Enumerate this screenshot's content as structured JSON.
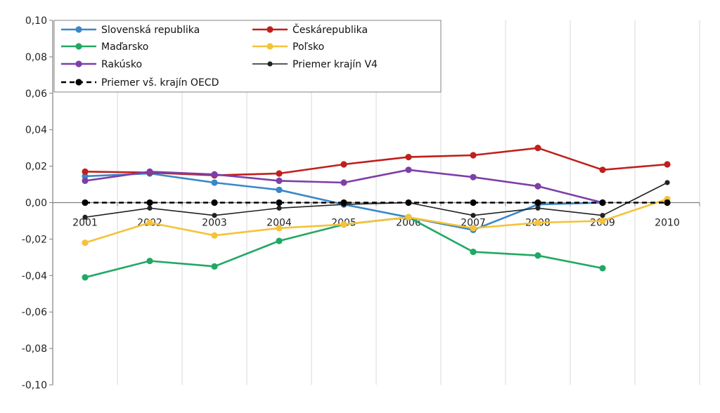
{
  "chart_data": {
    "type": "line",
    "title": "",
    "xlabel": "",
    "ylabel": "",
    "x": [
      "2001",
      "2002",
      "2003",
      "2004",
      "2005",
      "2006",
      "2007",
      "2008",
      "2009",
      "2010"
    ],
    "ylim": [
      -0.1,
      0.1
    ],
    "y_ticks": [
      "0,10",
      "0,08",
      "0,06",
      "0,04",
      "0,02",
      "0,00",
      "-0,02",
      "-0,04",
      "-0,06",
      "-0,08",
      "-0,10"
    ],
    "grid": "vertical",
    "legend_position": "top-left",
    "series": [
      {
        "name": "Slovenská republika",
        "color": "#3a87c8",
        "style": "solid",
        "values": [
          0.0145,
          0.016,
          0.011,
          0.007,
          -0.001,
          -0.008,
          -0.015,
          -0.001,
          0.0,
          null
        ]
      },
      {
        "name": "Českárepublika",
        "color": "#c0201c",
        "style": "solid",
        "values": [
          0.017,
          0.0165,
          0.015,
          0.016,
          0.021,
          0.025,
          0.026,
          0.03,
          0.018,
          0.021
        ]
      },
      {
        "name": "Maďarsko",
        "color": "#22a864",
        "style": "solid",
        "values": [
          -0.041,
          -0.032,
          -0.035,
          -0.021,
          -0.012,
          -0.008,
          -0.027,
          -0.029,
          -0.036,
          null
        ]
      },
      {
        "name": "Poľsko",
        "color": "#f5c23a",
        "style": "solid",
        "values": [
          -0.022,
          -0.011,
          -0.018,
          -0.014,
          -0.012,
          -0.008,
          -0.014,
          -0.011,
          -0.01,
          0.002
        ]
      },
      {
        "name": "Rakúsko",
        "color": "#7c3fa8",
        "style": "solid",
        "values": [
          0.012,
          0.017,
          0.0155,
          0.012,
          0.011,
          0.018,
          0.014,
          0.009,
          0.0,
          null
        ]
      },
      {
        "name": "Priemer krajín V4",
        "color": "#222222",
        "style": "solid-thin",
        "values": [
          -0.008,
          -0.003,
          -0.007,
          -0.003,
          -0.001,
          0.0,
          -0.007,
          -0.003,
          -0.007,
          0.011
        ]
      },
      {
        "name": "Priemer vš. krajín OECD",
        "color": "#000000",
        "style": "dashed",
        "values": [
          0.0,
          0.0,
          0.0,
          0.0,
          0.0,
          0.0,
          0.0,
          0.0,
          0.0,
          0.0
        ]
      }
    ]
  }
}
